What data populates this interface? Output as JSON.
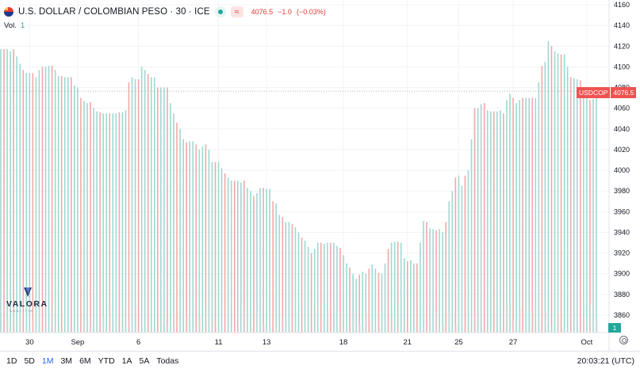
{
  "header": {
    "title": "U.S. DOLLAR / COLOMBIAN PESO · 30 · ICE",
    "flag_icon": "us-flag-icon",
    "approx_glyph": "≈",
    "last_price": "4076.5",
    "change": "−1.0",
    "change_pct": "(−0.03%)",
    "volume_label": "Vol.",
    "volume_value": "1"
  },
  "price_scale": {
    "symbol": "USDCOP",
    "current_price": "4076.5",
    "volume_badge": "1"
  },
  "watermark": {
    "name": "VALORA",
    "sub": "ANALITIK"
  },
  "timeframes": {
    "items": [
      "1D",
      "5D",
      "1M",
      "3M",
      "6M",
      "YTD",
      "1A",
      "5A",
      "Todas"
    ],
    "active": "1M"
  },
  "clock": "20:03:21 (UTC)",
  "colors": {
    "up": "#26a69a",
    "down": "#ef5350",
    "accent": "#2962ff",
    "grid": "#f0f3fa"
  },
  "chart_data": {
    "type": "bar",
    "style": "OHLC bars, 30-minute interval",
    "ylim": [
      3845,
      4162
    ],
    "yticks": [
      4160,
      4140,
      4120,
      4100,
      4080,
      4060,
      4040,
      4020,
      4000,
      3980,
      3960,
      3940,
      3920,
      3900,
      3880,
      3860
    ],
    "xticks": [
      "30",
      "Sep",
      "6",
      "11",
      "13",
      "18",
      "21",
      "25",
      "27",
      "Oct"
    ],
    "x_tick_index": [
      9,
      24,
      43,
      68,
      83,
      107,
      127,
      143,
      160,
      183
    ],
    "close_line": 4076.5,
    "grid": true,
    "highs": [
      4117,
      4117,
      4117,
      4115,
      4117,
      4110,
      4103,
      4097,
      4094,
      4094,
      4094,
      4090,
      4097,
      4100,
      4100,
      4101,
      4101,
      4097,
      4091,
      4091,
      4090,
      4090,
      4090,
      4082,
      4080,
      4070,
      4067,
      4065,
      4066,
      4060,
      4057,
      4056,
      4055,
      4055,
      4055,
      4055,
      4055,
      4056,
      4056,
      4058,
      4085,
      4090,
      4088,
      4088,
      4100,
      4097,
      4093,
      4090,
      4090,
      4080,
      4080,
      4080,
      4080,
      4065,
      4055,
      4046,
      4040,
      4030,
      4027,
      4028,
      4028,
      4025,
      4020,
      4023,
      4025,
      4020,
      4008,
      4008,
      4008,
      4002,
      3997,
      3993,
      3990,
      3990,
      3990,
      3988,
      3990,
      3983,
      3980,
      3975,
      3978,
      3983,
      3983,
      3982,
      3982,
      3970,
      3968,
      3957,
      3955,
      3950,
      3950,
      3948,
      3945,
      3940,
      3935,
      3932,
      3926,
      3920,
      3924,
      3930,
      3930,
      3929,
      3930,
      3930,
      3930,
      3927,
      3925,
      3918,
      3910,
      3906,
      3900,
      3895,
      3899,
      3902,
      3900,
      3905,
      3909,
      3905,
      3901,
      3900,
      3910,
      3924,
      3930,
      3931,
      3931,
      3930,
      3915,
      3912,
      3913,
      3910,
      3910,
      3930,
      3951,
      3950,
      3944,
      3943,
      3942,
      3943,
      3940,
      3950,
      3970,
      3980,
      3993,
      3995,
      3985,
      3995,
      4000,
      4030,
      4060,
      4060,
      4064,
      4065,
      4058,
      4057,
      4057,
      4057,
      4058,
      4055,
      4068,
      4074,
      4070,
      4065,
      4068,
      4070,
      4070,
      4070,
      4070,
      4070,
      4085,
      4101,
      4105,
      4125,
      4120,
      4115,
      4113,
      4112,
      4112,
      4100,
      4090,
      4089,
      4088,
      4087,
      4079,
      4075,
      4068,
      4069,
      4075
    ],
    "lows": [
      3845,
      3845,
      3845,
      3845,
      3845,
      3845,
      3845,
      3845,
      3845,
      3845,
      3845,
      3845,
      3845,
      3845,
      3845,
      3845,
      3845,
      3845,
      3845,
      3845,
      3845,
      3845,
      3845,
      3845,
      3845,
      3845,
      3845,
      3845,
      3845,
      3845,
      3845,
      3845,
      3845,
      3845,
      3845,
      3845,
      3845,
      3845,
      3845,
      3845,
      3845,
      3845,
      3845,
      3845,
      3845,
      3845,
      3845,
      3845,
      3845,
      3845,
      3845,
      3845,
      3845,
      3845,
      3845,
      3845,
      3845,
      3845,
      3845,
      3845,
      3845,
      3845,
      3845,
      3845,
      3845,
      3845,
      3845,
      3845,
      3845,
      3845,
      3845,
      3845,
      3845,
      3845,
      3845,
      3845,
      3845,
      3845,
      3845,
      3845,
      3845,
      3845,
      3845,
      3845,
      3845,
      3845,
      3845,
      3845,
      3845,
      3845,
      3845,
      3845,
      3845,
      3845,
      3845,
      3845,
      3845,
      3845,
      3845,
      3845,
      3845,
      3845,
      3845,
      3845,
      3845,
      3845,
      3845,
      3845,
      3845,
      3845,
      3845,
      3845,
      3845,
      3845,
      3845,
      3845,
      3845,
      3845,
      3845,
      3845,
      3845,
      3845,
      3845,
      3845,
      3845,
      3845,
      3845,
      3845,
      3845,
      3845,
      3845,
      3845,
      3845,
      3845,
      3845,
      3845,
      3845,
      3845,
      3845,
      3845,
      3845,
      3845,
      3845,
      3845,
      3845,
      3845,
      3845,
      3845,
      3845,
      3845,
      3845,
      3845,
      3845,
      3845,
      3845,
      3845,
      3845,
      3845,
      3845,
      3845,
      3845,
      3845,
      3845,
      3845,
      3845,
      3845,
      3845,
      3845,
      3845,
      3845,
      3845,
      3845,
      3845,
      3845,
      3845,
      3845,
      3845,
      3845,
      3845,
      3845,
      3845,
      3845,
      3845,
      3845,
      3845,
      3845,
      3845
    ]
  }
}
